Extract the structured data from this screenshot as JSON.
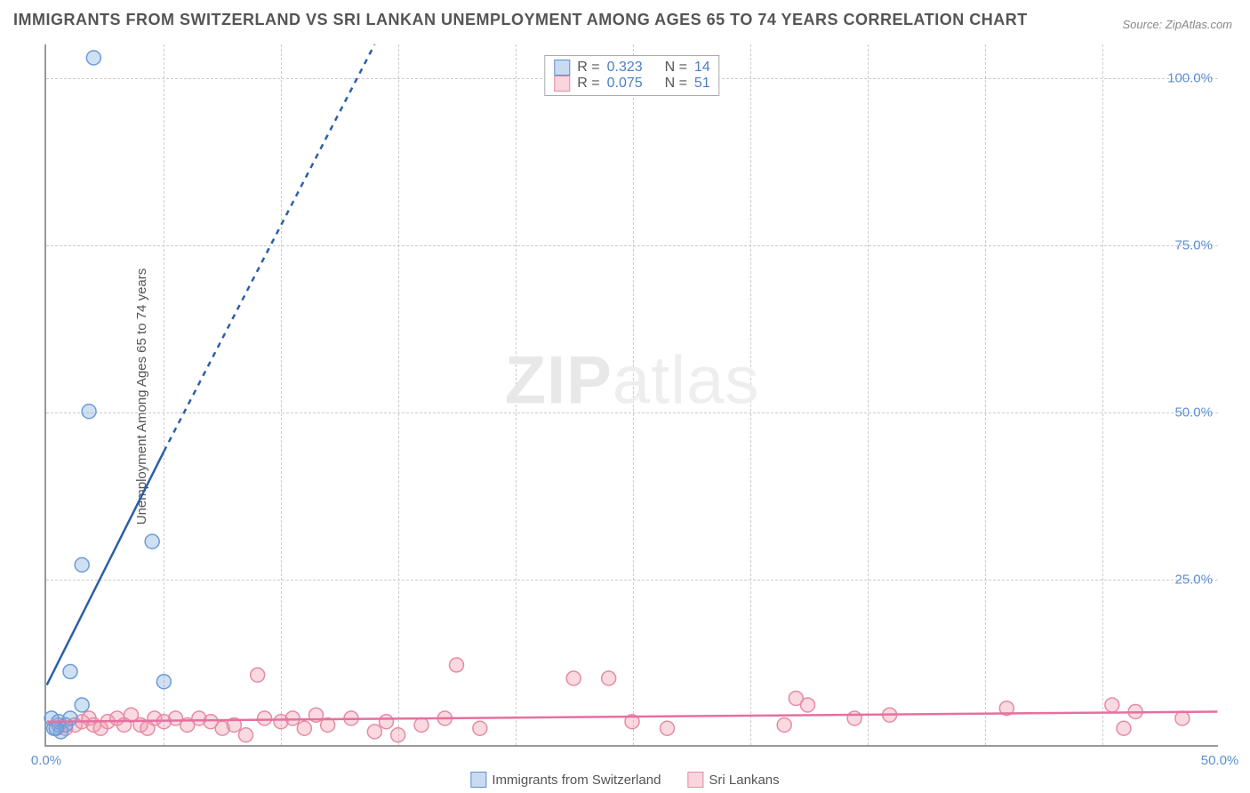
{
  "title": "IMMIGRANTS FROM SWITZERLAND VS SRI LANKAN UNEMPLOYMENT AMONG AGES 65 TO 74 YEARS CORRELATION CHART",
  "source": "Source: ZipAtlas.com",
  "ylabel": "Unemployment Among Ages 65 to 74 years",
  "watermark_zip": "ZIP",
  "watermark_atlas": "atlas",
  "chart": {
    "type": "scatter",
    "xlim": [
      0,
      50
    ],
    "ylim": [
      0,
      105
    ],
    "x_ticks": [
      0,
      50
    ],
    "x_tick_labels": [
      "0.0%",
      "50.0%"
    ],
    "y_ticks": [
      25,
      50,
      75,
      100
    ],
    "y_tick_labels": [
      "25.0%",
      "50.0%",
      "75.0%",
      "100.0%"
    ],
    "v_grid_positions": [
      5,
      10,
      15,
      20,
      25,
      30,
      35,
      40,
      45
    ],
    "background_color": "#ffffff",
    "grid_color": "#cccccc",
    "axis_color": "#999999",
    "marker_radius": 8,
    "marker_stroke_width": 1.5,
    "line_width": 2.5
  },
  "series_blue": {
    "label": "Immigrants from Switzerland",
    "color_fill": "rgba(120,165,220,0.35)",
    "color_stroke": "#6a9bd8",
    "line_color": "#2c5fa8",
    "R_label": "R = ",
    "R": "0.323",
    "N_label": "N = ",
    "N": "14",
    "points": [
      [
        2.0,
        103
      ],
      [
        1.8,
        50
      ],
      [
        4.5,
        30.5
      ],
      [
        1.5,
        27
      ],
      [
        1.0,
        11
      ],
      [
        5.0,
        9.5
      ],
      [
        1.5,
        6
      ],
      [
        0.2,
        4
      ],
      [
        0.5,
        3.5
      ],
      [
        0.8,
        3
      ],
      [
        0.3,
        2.5
      ],
      [
        0.6,
        2
      ],
      [
        1.0,
        4
      ],
      [
        0.4,
        2.5
      ]
    ],
    "trend_solid": {
      "x1": 0,
      "y1": 9,
      "x2": 5,
      "y2": 44
    },
    "trend_dashed": {
      "x1": 5,
      "y1": 44,
      "x2": 14,
      "y2": 105
    }
  },
  "series_pink": {
    "label": "Sri Lankans",
    "color_fill": "rgba(240,150,170,0.35)",
    "color_stroke": "#e68aa5",
    "line_color": "#e670a0",
    "R_label": "R = ",
    "R": "0.075",
    "N_label": "N = ",
    "N": "51",
    "points": [
      [
        0.5,
        3
      ],
      [
        0.8,
        2.5
      ],
      [
        1.2,
        3
      ],
      [
        1.5,
        3.5
      ],
      [
        1.8,
        4
      ],
      [
        2.0,
        3
      ],
      [
        2.3,
        2.5
      ],
      [
        2.6,
        3.5
      ],
      [
        3.0,
        4
      ],
      [
        3.3,
        3
      ],
      [
        3.6,
        4.5
      ],
      [
        4.0,
        3
      ],
      [
        4.3,
        2.5
      ],
      [
        4.6,
        4
      ],
      [
        5.0,
        3.5
      ],
      [
        5.5,
        4
      ],
      [
        6.0,
        3
      ],
      [
        6.5,
        4
      ],
      [
        7.0,
        3.5
      ],
      [
        7.5,
        2.5
      ],
      [
        8.0,
        3
      ],
      [
        8.5,
        1.5
      ],
      [
        9.3,
        4
      ],
      [
        9.0,
        10.5
      ],
      [
        10.0,
        3.5
      ],
      [
        10.5,
        4
      ],
      [
        11.0,
        2.5
      ],
      [
        11.5,
        4.5
      ],
      [
        12.0,
        3
      ],
      [
        13.0,
        4
      ],
      [
        14.0,
        2
      ],
      [
        14.5,
        3.5
      ],
      [
        15.0,
        1.5
      ],
      [
        16.0,
        3
      ],
      [
        17.0,
        4
      ],
      [
        17.5,
        12
      ],
      [
        18.5,
        2.5
      ],
      [
        22.5,
        10
      ],
      [
        24.0,
        10
      ],
      [
        25.0,
        3.5
      ],
      [
        26.5,
        2.5
      ],
      [
        31.5,
        3
      ],
      [
        32.0,
        7
      ],
      [
        32.5,
        6
      ],
      [
        34.5,
        4
      ],
      [
        36.0,
        4.5
      ],
      [
        41.0,
        5.5
      ],
      [
        45.5,
        6
      ],
      [
        46.0,
        2.5
      ],
      [
        46.5,
        5
      ],
      [
        48.5,
        4
      ]
    ],
    "trend": {
      "x1": 0,
      "y1": 3.5,
      "x2": 50,
      "y2": 5.0
    }
  }
}
